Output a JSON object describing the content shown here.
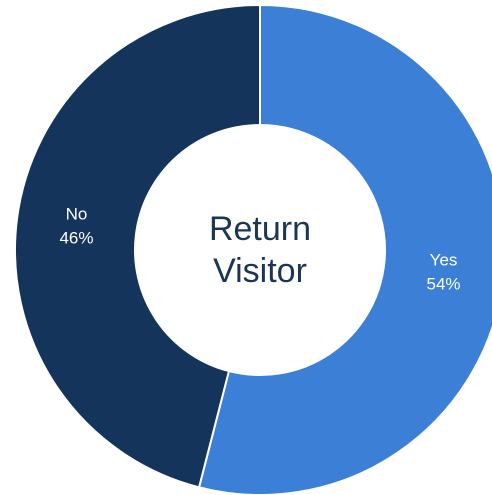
{
  "chart_data": {
    "type": "donut",
    "title": "Return Visitor",
    "categories": [
      "Yes",
      "No"
    ],
    "values": [
      54,
      46
    ],
    "value_labels": [
      "54%",
      "46%"
    ],
    "colors": [
      "#3b80d6",
      "#14345b"
    ]
  }
}
